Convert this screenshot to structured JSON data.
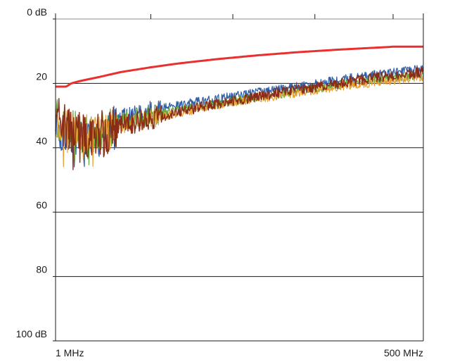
{
  "chart_data": {
    "type": "line",
    "title": "",
    "xlabel": "",
    "ylabel": "",
    "x_scale": "log",
    "xlim_mhz": [
      1,
      500
    ],
    "ylim_db": [
      0,
      100
    ],
    "y_inverted": true,
    "grid": {
      "horizontal": true,
      "vertical": false
    },
    "y_ticks": [
      {
        "value": 0,
        "label": "0 dB"
      },
      {
        "value": 20,
        "label": "20"
      },
      {
        "value": 40,
        "label": "40"
      },
      {
        "value": 60,
        "label": "60"
      },
      {
        "value": 80,
        "label": "80"
      },
      {
        "value": 100,
        "label": "100 dB"
      }
    ],
    "x_ticks": [
      {
        "value": 1,
        "label": "1 MHz"
      },
      {
        "value": 500,
        "label": "500 MHz"
      }
    ],
    "minor_top_ticks_mhz": [
      5,
      20,
      80,
      300
    ],
    "series": [
      {
        "color": "#e8302f",
        "width": 3,
        "noise": 0,
        "points": [
          [
            1,
            21
          ],
          [
            1.2,
            21
          ],
          [
            1.3,
            20
          ],
          [
            1.5,
            19.3
          ],
          [
            2,
            18.2
          ],
          [
            3,
            16.5
          ],
          [
            5,
            15
          ],
          [
            8,
            13.8
          ],
          [
            15,
            12.5
          ],
          [
            30,
            11.3
          ],
          [
            60,
            10.3
          ],
          [
            120,
            9.5
          ],
          [
            250,
            8.8
          ],
          [
            300,
            8.6
          ],
          [
            500,
            8.6
          ]
        ]
      },
      {
        "color": "#2f5ea8",
        "width": 1.2,
        "noise": 1.4,
        "points": [
          [
            1,
            30
          ],
          [
            1.1,
            35
          ],
          [
            1.3,
            36
          ],
          [
            1.6,
            38
          ],
          [
            2,
            37
          ],
          [
            2.4,
            35
          ],
          [
            3,
            31
          ],
          [
            5,
            28.5
          ],
          [
            10,
            26
          ],
          [
            20,
            24
          ],
          [
            50,
            21.5
          ],
          [
            100,
            19.5
          ],
          [
            200,
            17.5
          ],
          [
            500,
            15.5
          ]
        ]
      },
      {
        "color": "#68a83c",
        "width": 1.2,
        "noise": 1.4,
        "points": [
          [
            1,
            31
          ],
          [
            1.3,
            34
          ],
          [
            1.8,
            36
          ],
          [
            2.4,
            34
          ],
          [
            3,
            32
          ],
          [
            5,
            30
          ],
          [
            10,
            27.5
          ],
          [
            20,
            25.5
          ],
          [
            50,
            23
          ],
          [
            100,
            21
          ],
          [
            200,
            19
          ],
          [
            500,
            17.5
          ]
        ]
      },
      {
        "color": "#e8a030",
        "width": 1.2,
        "noise": 1.3,
        "points": [
          [
            1,
            33
          ],
          [
            1.4,
            35
          ],
          [
            2,
            36
          ],
          [
            3,
            33
          ],
          [
            5,
            31
          ],
          [
            10,
            28.5
          ],
          [
            20,
            26
          ],
          [
            50,
            23.5
          ],
          [
            100,
            21.5
          ],
          [
            200,
            20
          ],
          [
            500,
            18
          ]
        ]
      },
      {
        "color": "#8a2d18",
        "width": 1.4,
        "noise": 1.6,
        "points": [
          [
            1,
            31
          ],
          [
            1.3,
            34.5
          ],
          [
            1.7,
            37
          ],
          [
            2.4,
            35
          ],
          [
            3,
            33
          ],
          [
            5,
            31
          ],
          [
            10,
            28
          ],
          [
            20,
            25.5
          ],
          [
            50,
            22.5
          ],
          [
            100,
            20.5
          ],
          [
            200,
            18.5
          ],
          [
            500,
            16.5
          ]
        ]
      }
    ]
  }
}
